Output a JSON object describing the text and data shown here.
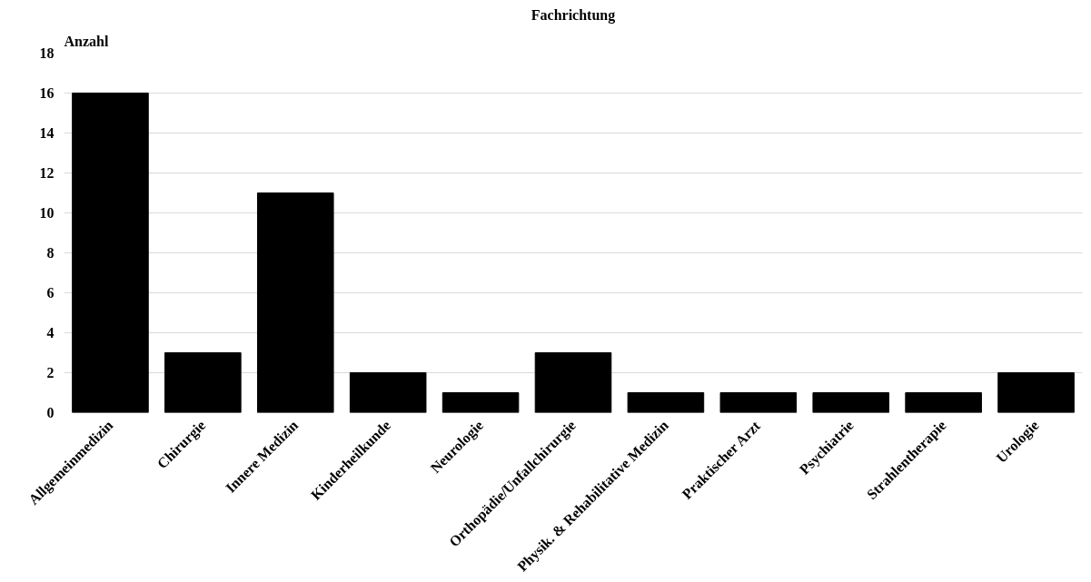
{
  "chart_data": {
    "type": "bar",
    "title": "Fachrichtung",
    "ylabel": "Anzahl",
    "categories": [
      "Allgemeinmedizin",
      "Chirurgie",
      "Innere Medizin",
      "Kinderheilkunde",
      "Neurologie",
      "Orthopädie/Unfallchirurgie",
      "Physik. & Rehabilitative Medizin",
      "Praktischer Arzt",
      "Psychiatrie",
      "Strahlentherapie",
      "Urologie"
    ],
    "values": [
      16,
      3,
      11,
      2,
      1,
      3,
      1,
      1,
      1,
      1,
      2
    ],
    "color": "#000000",
    "ylim": [
      0,
      18
    ],
    "yticks": [
      0,
      2,
      4,
      6,
      8,
      10,
      12,
      14,
      16,
      18
    ],
    "grid": "y"
  }
}
